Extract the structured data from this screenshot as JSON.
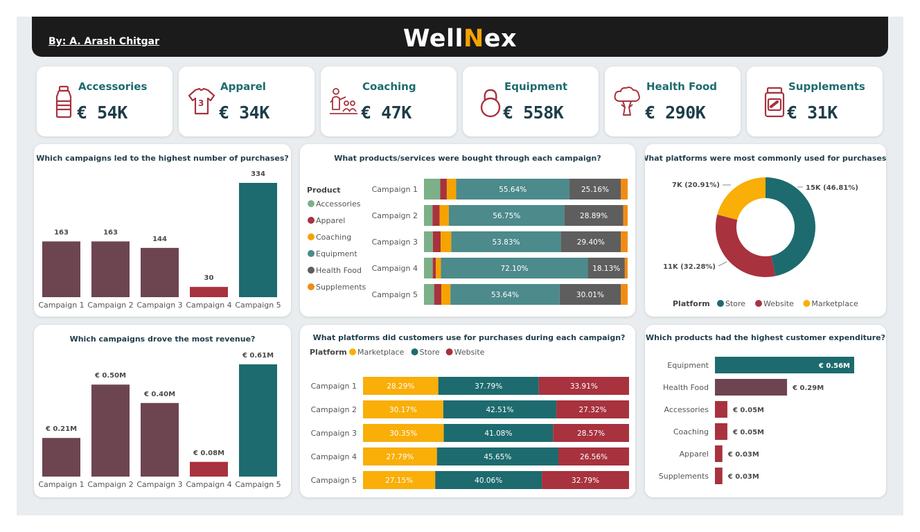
{
  "header": {
    "author": "By: A. Arash Chitgar",
    "brand_main": "Well",
    "brand_accent": "N",
    "brand_tail": "ex"
  },
  "colors": {
    "accessories": "#7cb088",
    "apparel": "#a8323e",
    "coaching": "#f5a300",
    "equipment": "#4c8a8c",
    "health_food": "#5e5e5e",
    "supplements": "#f08c16",
    "marketplace": "#f9ae08",
    "store": "#1d6b6e",
    "website": "#a8323e",
    "campaign_dark": "#6d4550",
    "highlight": "#a8323e",
    "teal": "#1d6b6e"
  },
  "kpis": [
    {
      "label": "Accessories",
      "value": "€ 54K",
      "icon": "bottle-icon"
    },
    {
      "label": "Apparel",
      "value": "€ 34K",
      "icon": "tshirt-icon"
    },
    {
      "label": "Coaching",
      "value": "€ 47K",
      "icon": "coach-icon"
    },
    {
      "label": "Equipment",
      "value": "€ 558K",
      "icon": "kettlebell-icon"
    },
    {
      "label": "Health Food",
      "value": "€ 290K",
      "icon": "broccoli-icon"
    },
    {
      "label": "Supplements",
      "value": "€ 31K",
      "icon": "pill-jar-icon"
    }
  ],
  "chart_data": [
    {
      "id": "purchases",
      "type": "bar",
      "title": "Which campaigns led to the highest number of purchases?",
      "categories": [
        "Campaign 1",
        "Campaign 2",
        "Campaign 3",
        "Campaign 4",
        "Campaign 5"
      ],
      "values": [
        163,
        163,
        144,
        30,
        334
      ],
      "value_labels": [
        "163",
        "163",
        "144",
        "30",
        "334"
      ],
      "ylim": [
        0,
        334
      ]
    },
    {
      "id": "products_by_campaign",
      "type": "bar",
      "title": "What products/services were bought through each campaign?",
      "legend_title": "Product",
      "legend_position": "left",
      "stacked": "percent",
      "orientation": "horizontal",
      "categories": [
        "Campaign 1",
        "Campaign 2",
        "Campaign 3",
        "Campaign 4",
        "Campaign 5"
      ],
      "series": [
        {
          "name": "Accessories",
          "values": [
            8.0,
            4.2,
            4.4,
            4.3,
            5.0
          ]
        },
        {
          "name": "Apparel",
          "values": [
            3.2,
            3.5,
            3.8,
            1.5,
            3.5
          ]
        },
        {
          "name": "Coaching",
          "values": [
            4.6,
            4.5,
            5.2,
            2.5,
            4.5
          ]
        },
        {
          "name": "Equipment",
          "values": [
            55.64,
            56.75,
            53.83,
            72.1,
            53.64
          ]
        },
        {
          "name": "Health Food",
          "values": [
            25.16,
            28.89,
            29.4,
            18.13,
            30.01
          ]
        },
        {
          "name": "Supplements",
          "values": [
            3.4,
            2.2,
            3.4,
            1.4,
            3.4
          ]
        }
      ],
      "labels": {
        "Equipment": [
          "55.64%",
          "56.75%",
          "53.83%",
          "72.10%",
          "53.64%"
        ],
        "Health Food": [
          "25.16%",
          "28.89%",
          "29.40%",
          "18.13%",
          "30.01%"
        ]
      }
    },
    {
      "id": "platforms",
      "type": "pie",
      "donut": true,
      "title": "What platforms were most commonly used for purchases?",
      "legend_title": "Platform",
      "legend_position": "bottom",
      "categories": [
        "Store",
        "Website",
        "Marketplace"
      ],
      "values": [
        46.81,
        32.28,
        20.91
      ],
      "slice_labels": [
        "15K (46.81%)",
        "11K (32.28%)",
        "7K (20.91%)"
      ]
    },
    {
      "id": "revenue",
      "type": "bar",
      "title": "Which campaigns drove the most revenue?",
      "categories": [
        "Campaign 1",
        "Campaign 2",
        "Campaign 3",
        "Campaign 4",
        "Campaign 5"
      ],
      "values": [
        0.21,
        0.5,
        0.4,
        0.08,
        0.61
      ],
      "value_labels": [
        "€ 0.21M",
        "€ 0.50M",
        "€ 0.40M",
        "€ 0.08M",
        "€ 0.61M"
      ],
      "ylim": [
        0,
        0.61
      ]
    },
    {
      "id": "platforms_by_campaign",
      "type": "bar",
      "title": "What platforms did customers use for purchases during each campaign?",
      "legend_title": "Platform",
      "legend_position": "top",
      "stacked": "percent",
      "orientation": "horizontal",
      "categories": [
        "Campaign 1",
        "Campaign 2",
        "Campaign 3",
        "Campaign 4",
        "Campaign 5"
      ],
      "series": [
        {
          "name": "Marketplace",
          "values": [
            28.29,
            30.17,
            30.35,
            27.79,
            27.15
          ]
        },
        {
          "name": "Store",
          "values": [
            37.79,
            42.51,
            41.08,
            45.65,
            40.06
          ]
        },
        {
          "name": "Website",
          "values": [
            33.91,
            27.32,
            28.57,
            26.56,
            32.79
          ]
        }
      ],
      "labels": {
        "Marketplace": [
          "28.29%",
          "30.17%",
          "30.35%",
          "27.79%",
          "27.15%"
        ],
        "Store": [
          "37.79%",
          "42.51%",
          "41.08%",
          "45.65%",
          "40.06%"
        ],
        "Website": [
          "33.91%",
          "27.32%",
          "28.57%",
          "26.56%",
          "32.79%"
        ]
      }
    },
    {
      "id": "expenditure",
      "type": "bar",
      "orientation": "horizontal",
      "title": "Which products had the highest customer expenditure?",
      "categories": [
        "Equipment",
        "Health Food",
        "Accessories",
        "Coaching",
        "Apparel",
        "Supplements"
      ],
      "values": [
        0.56,
        0.29,
        0.05,
        0.05,
        0.03,
        0.03
      ],
      "value_labels": [
        "€ 0.56M",
        "€ 0.29M",
        "€ 0.05M",
        "€ 0.05M",
        "€ 0.03M",
        "€ 0.03M"
      ],
      "xlim": [
        0,
        0.56
      ]
    }
  ]
}
